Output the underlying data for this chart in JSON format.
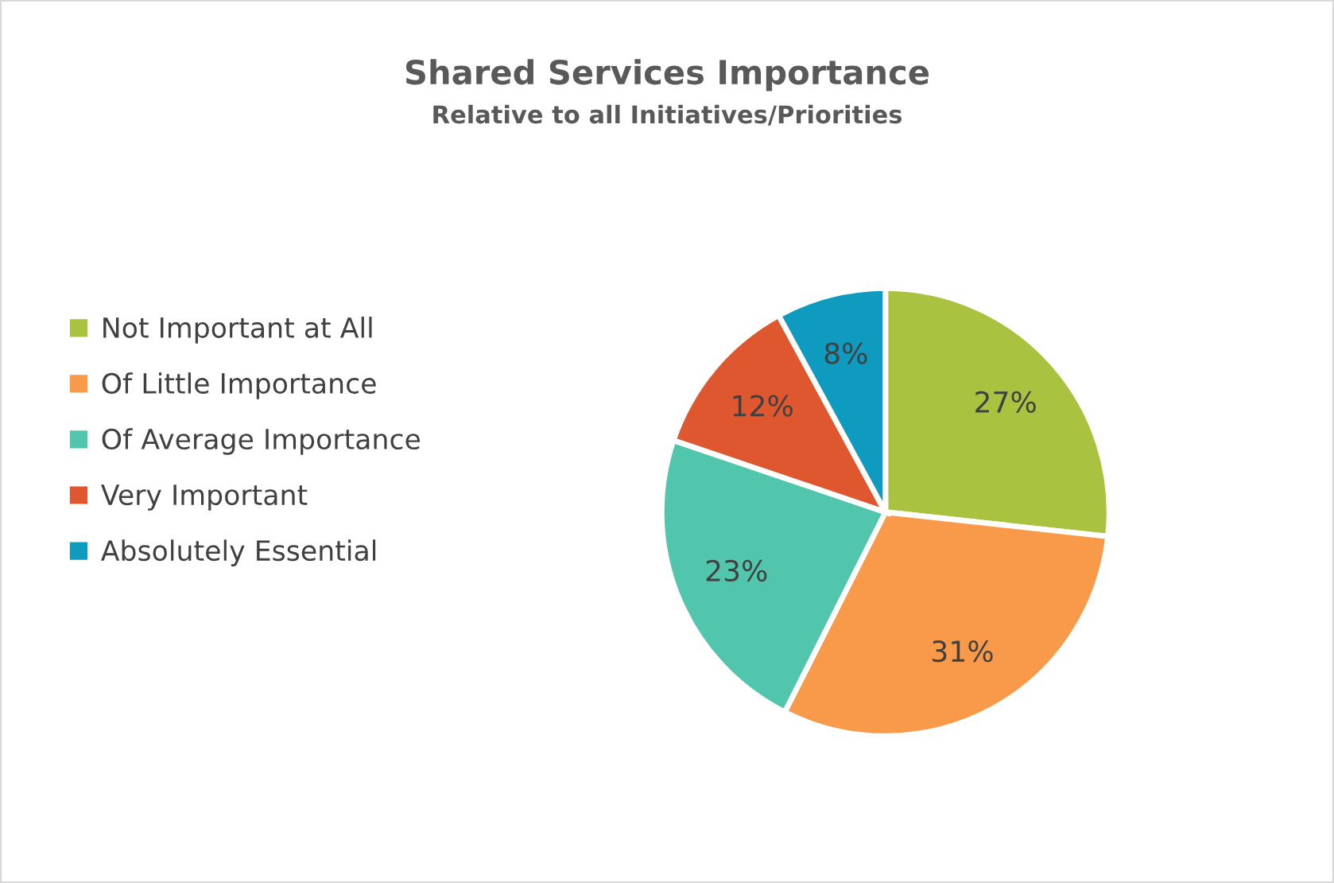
{
  "chart_data": {
    "type": "pie",
    "title": "Shared Services Importance",
    "subtitle": "Relative to all Initiatives/Priorities",
    "categories": [
      "Not Important at All",
      "Of Little Importance",
      "Of Average Importance",
      "Very Important",
      "Absolutely Essential"
    ],
    "values": [
      27,
      31,
      23,
      12,
      8
    ],
    "value_labels": [
      "27%",
      "31%",
      "23%",
      "12%",
      "8%"
    ],
    "colors": [
      "#a9c23f",
      "#f9994a",
      "#52c6ad",
      "#df572f",
      "#0f9bc0"
    ],
    "legend": "left"
  }
}
